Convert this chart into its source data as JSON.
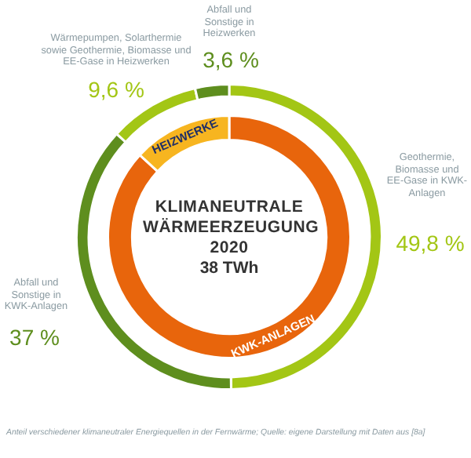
{
  "chart_data": [
    {
      "type": "donut",
      "title": "KLIMANEUTRALE WÄRMEERZEUGUNG 2020",
      "subtitle": "38 TWh",
      "categories": [
        "Geothermie, Biomasse und EE-Gase in KWK-Anlagen",
        "Abfall und Sonstige in KWK-Anlagen",
        "Wärmepumpen, Solarthermie sowie Geothermie, Biomasse und EE-Gase in Heizwerken",
        "Abfall und Sonstige in Heizwerken"
      ],
      "values": [
        49.8,
        37,
        9.6,
        3.6
      ],
      "value_labels": [
        "49,8 %",
        "37 %",
        "9,6 %",
        "3,6 %"
      ],
      "colors": [
        "#a3c615",
        "#5e8e1e",
        "#a3c615",
        "#5e8e1e"
      ],
      "annotations": [
        "Anteil verschiedener klimaneutraler Energiequellen in der Fernwärme; Quelle: eigene Darstellung mit Daten aus [8a]"
      ]
    },
    {
      "type": "donut",
      "categories": [
        "KWK-ANLAGEN",
        "HEIZWERKE"
      ],
      "values": [
        86.8,
        13.2
      ],
      "colors": [
        "#e8650c",
        "#f7b520"
      ]
    }
  ]
}
